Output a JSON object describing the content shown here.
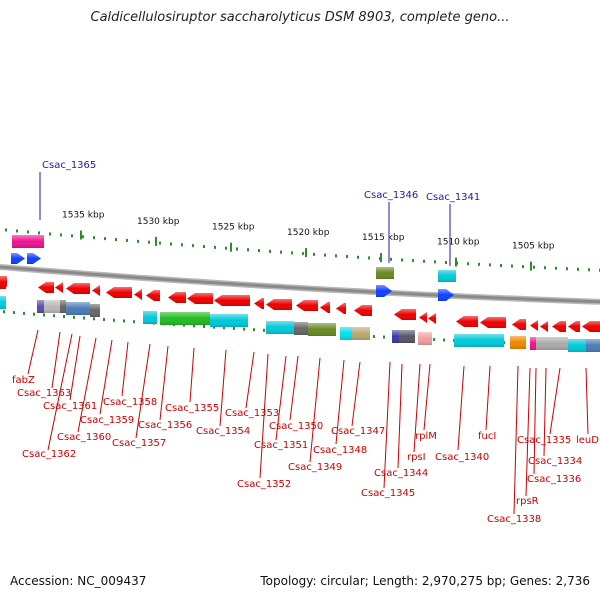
{
  "title": "Caldicellulosiruptor saccharolyticus DSM 8903, complete geno...",
  "footer": {
    "accession": "Accession: NC_009437",
    "summary": "Topology: circular; Length: 2,970,275 bp; Genes: 2,736"
  },
  "colors": {
    "backbone": "#8a8a8a",
    "gene_red": "#ee0000",
    "label_red": "#cc0000",
    "label_blue": "#1a1aa8",
    "tick_green": "#2e8b2e"
  },
  "scale_ticks": [
    {
      "label": "1535 kbp"
    },
    {
      "label": "1530 kbp"
    },
    {
      "label": "1525 kbp"
    },
    {
      "label": "1520 kbp"
    },
    {
      "label": "1515 kbp"
    },
    {
      "label": "1510 kbp"
    },
    {
      "label": "1505 kbp"
    }
  ],
  "top_gene_labels": [
    {
      "name": "Csac_1365"
    },
    {
      "name": "Csac_1346"
    },
    {
      "name": "Csac_1341"
    }
  ],
  "bottom_gene_labels": [
    {
      "name": "fabZ"
    },
    {
      "name": "Csac_1363"
    },
    {
      "name": "Csac_1362"
    },
    {
      "name": "Csac_1361"
    },
    {
      "name": "Csac_1360"
    },
    {
      "name": "Csac_1359"
    },
    {
      "name": "Csac_1358"
    },
    {
      "name": "Csac_1357"
    },
    {
      "name": "Csac_1356"
    },
    {
      "name": "Csac_1355"
    },
    {
      "name": "Csac_1354"
    },
    {
      "name": "Csac_1353"
    },
    {
      "name": "Csac_1352"
    },
    {
      "name": "Csac_1351"
    },
    {
      "name": "Csac_1350"
    },
    {
      "name": "Csac_1349"
    },
    {
      "name": "Csac_1348"
    },
    {
      "name": "Csac_1347"
    },
    {
      "name": "Csac_1345"
    },
    {
      "name": "Csac_1344"
    },
    {
      "name": "rpsI"
    },
    {
      "name": "rplM"
    },
    {
      "name": "Csac_1340"
    },
    {
      "name": "fucI"
    },
    {
      "name": "Csac_1338"
    },
    {
      "name": "rpsR"
    },
    {
      "name": "Csac_1336"
    },
    {
      "name": "Csac_1335"
    },
    {
      "name": "Csac_1334"
    },
    {
      "name": "leuD"
    }
  ]
}
